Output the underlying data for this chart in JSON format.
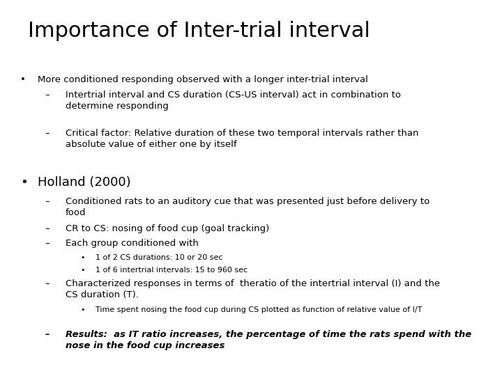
{
  "title": "Importance of Inter-trial interval",
  "background_color": "#ffffff",
  "text_color": "#000000",
  "title_fontsize": 22,
  "body_fontsize": 9.5,
  "holland_fontsize": 13,
  "bullet3_fontsize": 8,
  "lines": [
    {
      "type": "bullet1",
      "text": "More conditioned responding observed with a longer inter-trial interval"
    },
    {
      "type": "bullet2",
      "text": "Intertrial interval and CS duration (CS-US interval) act in combination to\ndetermine responding"
    },
    {
      "type": "spacer_med"
    },
    {
      "type": "bullet2",
      "text": "Critical factor: Relative duration of these two temporal intervals rather than\nabsolute value of either one by itself"
    },
    {
      "type": "spacer_large"
    },
    {
      "type": "bullet1_large",
      "text": "Holland (2000)"
    },
    {
      "type": "bullet2",
      "text": "Conditioned rats to an auditory cue that was presented just before delivery to\nfood"
    },
    {
      "type": "bullet2",
      "text": "CR to CS: nosing of food cup (goal tracking)"
    },
    {
      "type": "bullet2",
      "text": "Each group conditioned with"
    },
    {
      "type": "bullet3",
      "text": "1 of 2 CS durations: 10 or 20 sec"
    },
    {
      "type": "bullet3",
      "text": "1 of 6 intertrial intervals: 15 to 960 sec"
    },
    {
      "type": "bullet2",
      "text": "Characterized responses in terms of  theratio of the intertrial interval (I) and the\nCS duration (T)."
    },
    {
      "type": "bullet3",
      "text": "Time spent nosing the food cup during CS plotted as function of relative value of I/T"
    },
    {
      "type": "spacer_med"
    },
    {
      "type": "bullet2_bold",
      "text": "Results:  as IT ratio increases, the percentage of time the rats spend with the\nnose in the food cup increases"
    }
  ]
}
